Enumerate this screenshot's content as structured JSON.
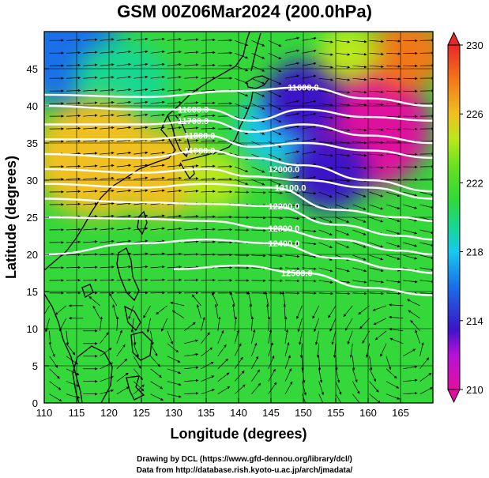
{
  "title": "GSM 00Z06Mar2024 (200.0hPa)",
  "map": {
    "x_label": "Longitude (degrees)",
    "y_label": "Latitude  (degrees)",
    "lon_range": [
      110,
      170
    ],
    "lat_range": [
      0,
      50
    ],
    "lon_ticks": [
      "110",
      "115",
      "120",
      "125",
      "130",
      "135",
      "140",
      "145",
      "150",
      "155",
      "160",
      "165"
    ],
    "lat_ticks": [
      "0",
      "5",
      "10",
      "15",
      "20",
      "25",
      "30",
      "35",
      "40",
      "45"
    ],
    "lon_tick_values": [
      110,
      115,
      120,
      125,
      130,
      135,
      140,
      145,
      150,
      155,
      160,
      165
    ],
    "lat_tick_values": [
      0,
      5,
      10,
      15,
      20,
      25,
      30,
      35,
      40,
      45
    ],
    "grid": true
  },
  "colorbar": {
    "labels": [
      "230",
      "226",
      "222",
      "218",
      "214",
      "210"
    ],
    "label_values": [
      230,
      226,
      222,
      218,
      214,
      210
    ],
    "range": [
      210,
      230
    ],
    "stops": [
      {
        "value": 210,
        "color": "#e0109e"
      },
      {
        "value": 212,
        "color": "#b812d8"
      },
      {
        "value": 213.5,
        "color": "#3c14c8"
      },
      {
        "value": 216,
        "color": "#1a70e8"
      },
      {
        "value": 218,
        "color": "#18c8ee"
      },
      {
        "value": 219.5,
        "color": "#18d890"
      },
      {
        "value": 221,
        "color": "#30d83a"
      },
      {
        "value": 223,
        "color": "#6ae020"
      },
      {
        "value": 224.5,
        "color": "#b8e81c"
      },
      {
        "value": 226,
        "color": "#f0c020"
      },
      {
        "value": 228,
        "color": "#f07818"
      },
      {
        "value": 230,
        "color": "#e82828"
      }
    ]
  },
  "temperature_field": [
    {
      "lon": 114,
      "lat": 47,
      "value": 216,
      "radius_deg": 7
    },
    {
      "lon": 122,
      "lat": 43,
      "value": 219,
      "radius_deg": 6
    },
    {
      "lon": 118,
      "lat": 33,
      "value": 226,
      "radius_deg": 8
    },
    {
      "lon": 128,
      "lat": 31,
      "value": 227,
      "radius_deg": 6
    },
    {
      "lon": 136,
      "lat": 30,
      "value": 225,
      "radius_deg": 4
    },
    {
      "lon": 146,
      "lat": 37,
      "value": 218,
      "radius_deg": 5
    },
    {
      "lon": 160,
      "lat": 37,
      "value": 211,
      "radius_deg": 8
    },
    {
      "lon": 154,
      "lat": 31,
      "value": 213,
      "radius_deg": 5
    },
    {
      "lon": 150,
      "lat": 41,
      "value": 214,
      "radius_deg": 5
    },
    {
      "lon": 166,
      "lat": 47,
      "value": 228,
      "radius_deg": 5
    },
    {
      "lon": 157,
      "lat": 47,
      "value": 224,
      "radius_deg": 4
    }
  ],
  "contours": [
    {
      "label": "11600.0",
      "label_lon": 150,
      "label_lat": 42.5,
      "points": [
        [
          110,
          41.5
        ],
        [
          125,
          41.2
        ],
        [
          140,
          42
        ],
        [
          150,
          42.5
        ],
        [
          160,
          41
        ],
        [
          170,
          40
        ]
      ]
    },
    {
      "label": "11600.0",
      "label_lon": 133,
      "label_lat": 39.5,
      "points": [
        [
          110,
          40
        ],
        [
          125,
          39.5
        ],
        [
          135,
          39.5
        ],
        [
          142,
          38
        ],
        [
          150,
          39.5
        ],
        [
          160,
          38.5
        ],
        [
          170,
          38
        ]
      ]
    },
    {
      "label": "11700.0",
      "label_lon": 133,
      "label_lat": 38,
      "points": [
        [
          110,
          37.5
        ],
        [
          125,
          37.5
        ],
        [
          135,
          38
        ],
        [
          142,
          36.5
        ],
        [
          150,
          37.5
        ],
        [
          160,
          36
        ],
        [
          170,
          35
        ]
      ]
    },
    {
      "label": "11800.0",
      "label_lon": 134,
      "label_lat": 36,
      "points": [
        [
          110,
          35.5
        ],
        [
          125,
          35.5
        ],
        [
          135,
          36
        ],
        [
          142,
          34.5
        ],
        [
          150,
          35
        ],
        [
          160,
          34
        ],
        [
          170,
          33
        ]
      ]
    },
    {
      "label": "11900.0",
      "label_lon": 134,
      "label_lat": 34,
      "points": [
        [
          110,
          33.5
        ],
        [
          125,
          33
        ],
        [
          135,
          34
        ],
        [
          142,
          33
        ],
        [
          150,
          32
        ],
        [
          160,
          30
        ],
        [
          170,
          28.5
        ]
      ]
    },
    {
      "label": "12000.0",
      "label_lon": 147,
      "label_lat": 31.5,
      "points": [
        [
          110,
          31.5
        ],
        [
          125,
          31
        ],
        [
          135,
          31.5
        ],
        [
          142,
          30.5
        ],
        [
          150,
          30
        ],
        [
          160,
          29
        ],
        [
          170,
          27.5
        ]
      ]
    },
    {
      "label": "12100.0",
      "label_lon": 148,
      "label_lat": 29,
      "points": [
        [
          110,
          29.5
        ],
        [
          125,
          29
        ],
        [
          135,
          29.5
        ],
        [
          145,
          29
        ],
        [
          155,
          26
        ],
        [
          165,
          25
        ],
        [
          170,
          24.5
        ]
      ]
    },
    {
      "label": "12200.0",
      "label_lon": 147,
      "label_lat": 26.5,
      "points": [
        [
          110,
          27.5
        ],
        [
          125,
          27
        ],
        [
          135,
          26.8
        ],
        [
          145,
          26.5
        ],
        [
          155,
          24
        ],
        [
          165,
          22.5
        ],
        [
          170,
          22
        ]
      ]
    },
    {
      "label": "12300.0",
      "label_lon": 147,
      "label_lat": 23.5,
      "points": [
        [
          110,
          25
        ],
        [
          125,
          24.8
        ],
        [
          135,
          24.5
        ],
        [
          145,
          23.5
        ],
        [
          155,
          22
        ],
        [
          165,
          20.5
        ],
        [
          170,
          20
        ]
      ]
    },
    {
      "label": "12400.0",
      "label_lon": 147,
      "label_lat": 21.5,
      "points": [
        [
          110,
          20
        ],
        [
          125,
          21.5
        ],
        [
          135,
          22
        ],
        [
          145,
          21.5
        ],
        [
          155,
          19.5
        ],
        [
          165,
          18
        ],
        [
          170,
          17.5
        ]
      ]
    },
    {
      "label": "12500.0",
      "label_lon": 149,
      "label_lat": 17.5,
      "points": [
        [
          130,
          18
        ],
        [
          140,
          18.5
        ],
        [
          150,
          17.5
        ],
        [
          160,
          15.5
        ],
        [
          170,
          14.5
        ]
      ]
    }
  ],
  "vortices": [
    {
      "lon": 131,
      "lat": 10.5
    },
    {
      "lon": 116,
      "lat": 10
    },
    {
      "lon": 165,
      "lat": 7
    }
  ],
  "credits": {
    "line1": "Drawing by DCL (https://www.gfd-dennou.org/library/dcl/)",
    "line2": "Data from http://database.rish.kyoto-u.ac.jp/arch/jmadata/"
  }
}
